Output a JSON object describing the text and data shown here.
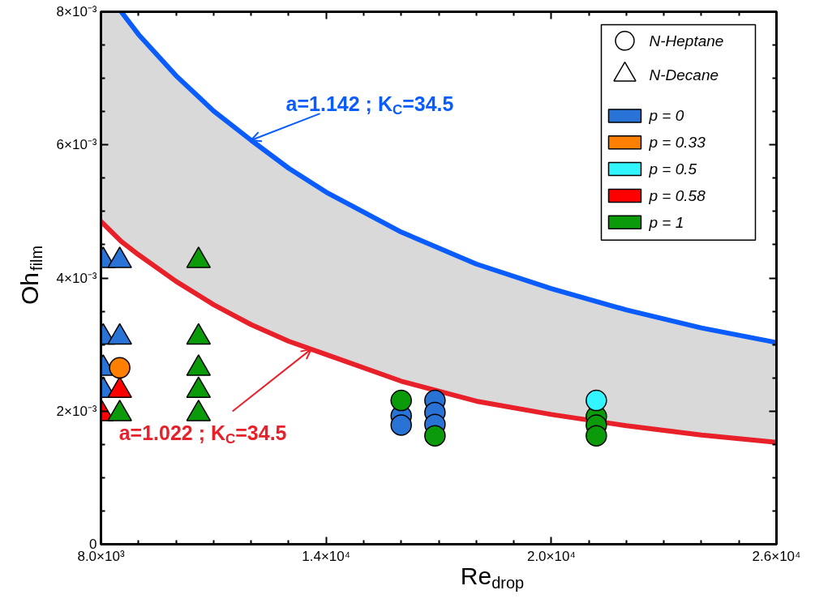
{
  "chart_data": {
    "type": "scatter",
    "xlabel": "Re$_{drop}$",
    "ylabel": "Oh$_{film}$",
    "xlim": [
      8000,
      26000
    ],
    "ylim": [
      0,
      0.008
    ],
    "xticks": [
      {
        "value": 8000,
        "label": "8.0×10³"
      },
      {
        "value": 14000,
        "label": "1.4×10⁴"
      },
      {
        "value": 20000,
        "label": "2.0×10⁴"
      },
      {
        "value": 26000,
        "label": "2.6×10⁴"
      }
    ],
    "yticks": [
      0,
      {
        "value": 0.002,
        "label": "2×10⁻³"
      },
      {
        "value": 0.004,
        "label": "4×10⁻³"
      },
      {
        "value": 0.006,
        "label": "6×10⁻³"
      },
      {
        "value": 0.008,
        "label": "8×10⁻³"
      }
    ],
    "legend": "top right",
    "annotations": [
      {
        "text": "a=1.142 ; K$_{C}$=34.5",
        "x": 12000,
        "y": 0.00607
      },
      {
        "text": "a=1.022 ; K$_{C}$=34.5",
        "x": 13600,
        "y": 0.00293
      }
    ],
    "series": [
      {
        "type": "line",
        "color": "#e8202a",
        "x": [
          8000,
          8540,
          9000,
          10000,
          11000,
          12000,
          13000,
          14000,
          16000,
          18000,
          20000,
          22000,
          24000,
          26000
        ],
        "values": [
          0.00485,
          0.00455,
          0.00435,
          0.00395,
          0.0036,
          0.0033,
          0.00305,
          0.00285,
          0.00245,
          0.00215,
          0.00195,
          0.00178,
          0.00164,
          0.00153
        ],
        "lower": [
          0.00485,
          0.00455,
          0.00435,
          0.00395,
          0.0036,
          0.0033,
          0.00305,
          0.00285,
          0.00245,
          0.00215,
          0.00195,
          0.00178,
          0.00164,
          0.00153
        ],
        "upper": [
          0.008,
          0.008,
          0.00766,
          0.00704,
          0.00651,
          0.00607,
          0.00565,
          0.00529,
          0.00469,
          0.00421,
          0.00384,
          0.00352,
          0.00325,
          0.00303
        ]
      },
      {
        "type": "line",
        "color": "#0a5cff",
        "x": [
          8540,
          9000,
          10000,
          11000,
          12000,
          13000,
          14000,
          16000,
          18000,
          20000,
          22000,
          24000,
          26000
        ],
        "values": [
          0.008,
          0.00766,
          0.00704,
          0.00651,
          0.00607,
          0.00565,
          0.00529,
          0.00469,
          0.00421,
          0.00384,
          0.00352,
          0.00325,
          0.00303
        ]
      },
      {
        "marker": "triangle",
        "color": "#2a73d6",
        "x": [
          8060,
          8060,
          8060,
          8060,
          8500,
          8500
        ],
        "values": [
          0.00426,
          0.00311,
          0.00264,
          0.00231,
          0.00426,
          0.00311
        ]
      },
      {
        "marker": "triangle",
        "color": "#ff0000",
        "x": [
          8020,
          8500
        ],
        "values": [
          0.00196,
          0.00231
        ]
      },
      {
        "marker": "triangle",
        "color": "#0a9a0a",
        "x": [
          8500,
          10600,
          10600,
          10600,
          10600,
          10600
        ],
        "values": [
          0.00196,
          0.00426,
          0.00311,
          0.00264,
          0.00231,
          0.00196
        ]
      },
      {
        "marker": "circle",
        "color": "#ff7f00",
        "x": [
          8500
        ],
        "values": [
          0.00265
        ]
      },
      {
        "marker": "circle",
        "color": "#2a73d6",
        "x": [
          16000,
          16000,
          16900,
          16900,
          16900
        ],
        "values": [
          0.00193,
          0.00179,
          0.00216,
          0.00198,
          0.0018
        ]
      },
      {
        "marker": "circle",
        "color": "#0a9a0a",
        "x": [
          16000,
          16900,
          21200,
          21200,
          21200
        ],
        "values": [
          0.00216,
          0.00163,
          0.00192,
          0.00179,
          0.00163
        ]
      },
      {
        "marker": "circle",
        "color": "#33f5ff",
        "x": [
          21200
        ],
        "values": [
          0.00216
        ]
      },
      {
        "name": "N-Heptane",
        "marker": "circle",
        "color": "#ffffff"
      },
      {
        "name": "N-Decane",
        "marker": "triangle",
        "color": "#ffffff"
      },
      {
        "name": "p = 0",
        "marker": "square",
        "color": "#2a73d6"
      },
      {
        "name": "p = 0.33",
        "marker": "square",
        "color": "#ff7f00"
      },
      {
        "name": "p = 0.5",
        "marker": "square",
        "color": "#33f5ff"
      },
      {
        "name": "p = 0.58",
        "marker": "square",
        "color": "#ff0000"
      },
      {
        "name": "p = 1",
        "marker": "square",
        "color": "#0a9a0a"
      }
    ]
  }
}
